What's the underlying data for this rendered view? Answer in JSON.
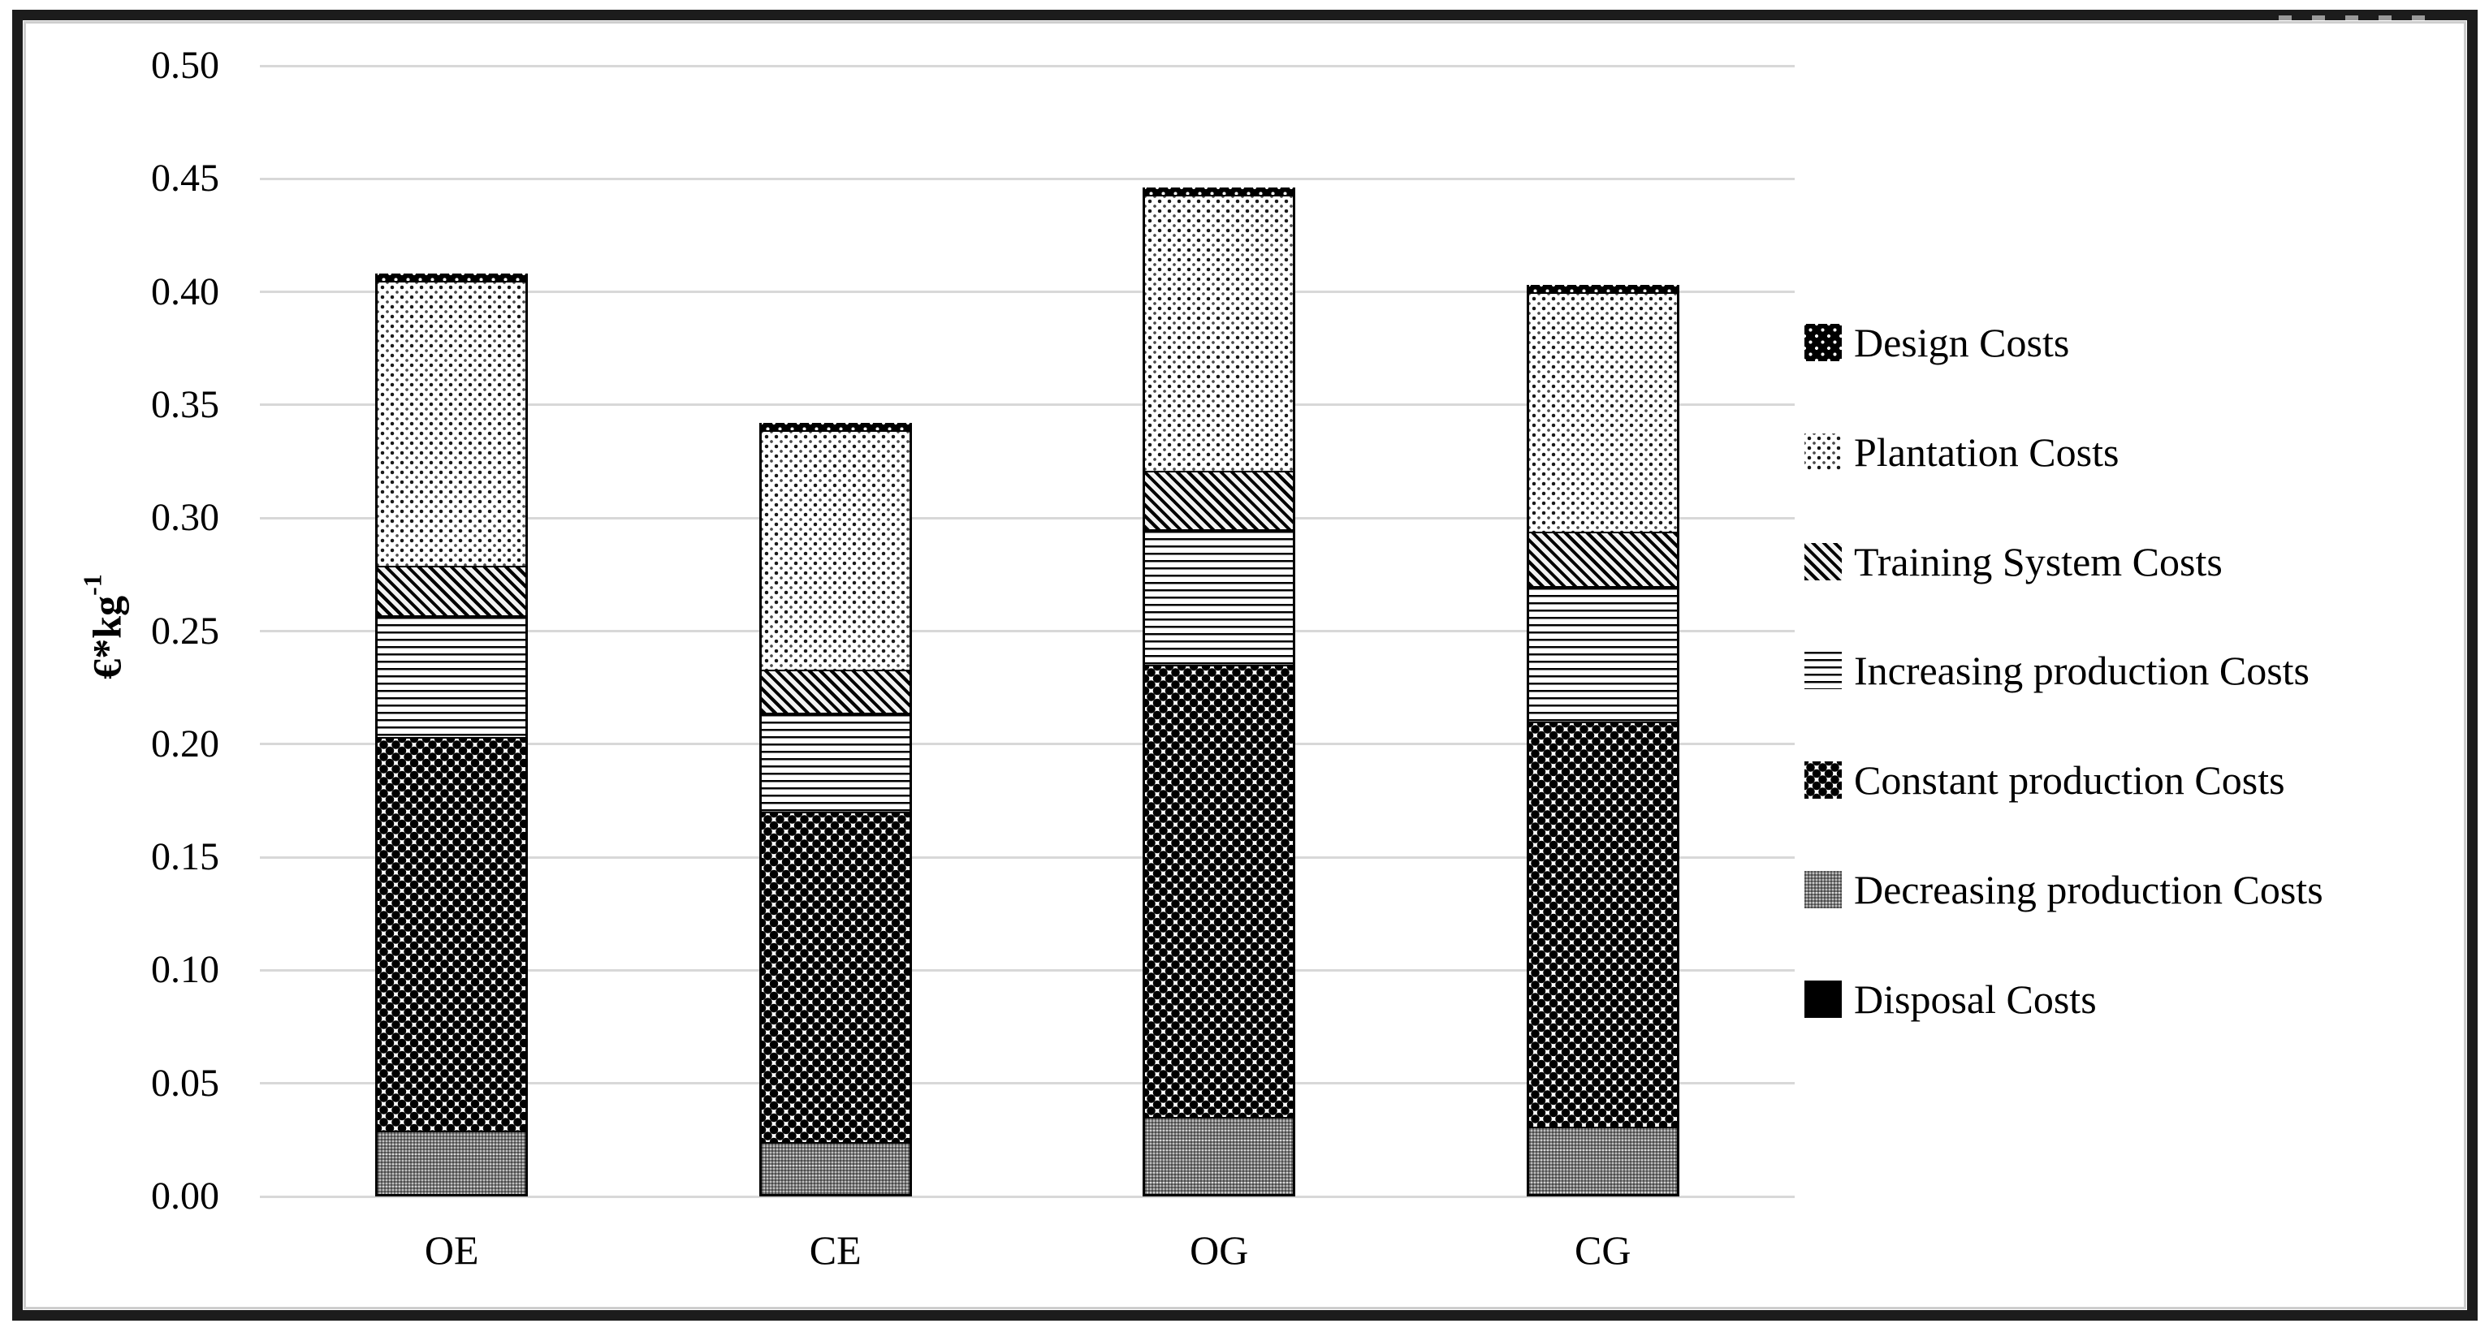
{
  "figure": {
    "background": "#ffffff",
    "outer_border_color": "#1c1c1c",
    "inner_border_color": "#cdcdcd",
    "gridline_color": "#d8d8d8"
  },
  "y_axis": {
    "title_base": "€*kg",
    "title_sup": "-1",
    "ticks": [
      {
        "label": "0.50",
        "value": 0.5
      },
      {
        "label": "0.45",
        "value": 0.45
      },
      {
        "label": "0.40",
        "value": 0.4
      },
      {
        "label": "0.35",
        "value": 0.35
      },
      {
        "label": "0.30",
        "value": 0.3
      },
      {
        "label": "0.25",
        "value": 0.25
      },
      {
        "label": "0.20",
        "value": 0.2
      },
      {
        "label": "0.15",
        "value": 0.15
      },
      {
        "label": "0.10",
        "value": 0.1
      },
      {
        "label": "0.05",
        "value": 0.05
      },
      {
        "label": "0.00",
        "value": 0.0
      }
    ]
  },
  "x_axis": {
    "categories": [
      "OE",
      "CE",
      "OG",
      "CG"
    ]
  },
  "legend": {
    "position": "right",
    "items": [
      {
        "label": "Design Costs",
        "pattern": "white-dots-on-black"
      },
      {
        "label": "Plantation Costs",
        "pattern": "black-dots-on-white"
      },
      {
        "label": "Training System Costs",
        "pattern": "diagonal-hatch"
      },
      {
        "label": "Increasing production Costs",
        "pattern": "horizontal-lines"
      },
      {
        "label": "Constant production Costs",
        "pattern": "dark-ball-weave"
      },
      {
        "label": "Decreasing production Costs",
        "pattern": "gray-halftone"
      },
      {
        "label": "Disposal Costs",
        "pattern": "solid-black"
      }
    ]
  },
  "chart_data": {
    "type": "bar",
    "stacked": true,
    "title": "",
    "xlabel": "",
    "ylabel": "€*kg⁻¹",
    "ylim": [
      0,
      0.5
    ],
    "ytick_step": 0.05,
    "grid": true,
    "legend_position": "right",
    "categories": [
      "OE",
      "CE",
      "OG",
      "CG"
    ],
    "series": [
      {
        "name": "Design Costs",
        "pattern": "white-dots-on-black",
        "values": [
          0.003,
          0.003,
          0.003,
          0.003
        ]
      },
      {
        "name": "Plantation Costs",
        "pattern": "black-dots-on-white",
        "values": [
          0.126,
          0.106,
          0.122,
          0.106
        ]
      },
      {
        "name": "Training System Costs",
        "pattern": "diagonal-hatch",
        "values": [
          0.022,
          0.019,
          0.026,
          0.024
        ]
      },
      {
        "name": "Increasing production Costs",
        "pattern": "horizontal-lines",
        "values": [
          0.054,
          0.044,
          0.06,
          0.06
        ]
      },
      {
        "name": "Constant production Costs",
        "pattern": "dark-ball-weave",
        "values": [
          0.174,
          0.146,
          0.2,
          0.179
        ]
      },
      {
        "name": "Decreasing production Costs",
        "pattern": "gray-halftone",
        "values": [
          0.028,
          0.023,
          0.034,
          0.03
        ]
      },
      {
        "name": "Disposal Costs",
        "pattern": "solid-black",
        "values": [
          0.001,
          0.001,
          0.001,
          0.001
        ]
      }
    ],
    "stack_order_bottom_to_top": [
      "Disposal Costs",
      "Decreasing production Costs",
      "Constant production Costs",
      "Increasing production Costs",
      "Training System Costs",
      "Plantation Costs",
      "Design Costs"
    ],
    "bar_totals": [
      0.408,
      0.342,
      0.446,
      0.403
    ]
  }
}
